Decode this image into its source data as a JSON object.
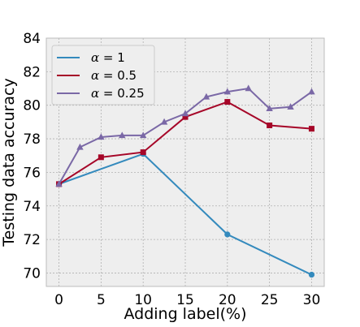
{
  "chart_data": {
    "type": "line",
    "xlabel": "Adding label(%)",
    "ylabel": "Testing data accuracy",
    "xlim": [
      -1.5,
      31.5
    ],
    "ylim": [
      69.2,
      84
    ],
    "xticks": [
      0,
      5,
      10,
      15,
      20,
      25,
      30
    ],
    "yticks": [
      70,
      72,
      74,
      76,
      78,
      80,
      82,
      84
    ],
    "grid": true,
    "legend_position": "top-left",
    "series": [
      {
        "name": "α = 1",
        "legend_symbol": "α",
        "legend_rest": " = 1",
        "color": "#348abd",
        "marker": "circle",
        "x": [
          0,
          10,
          20,
          30
        ],
        "y": [
          75.3,
          77.1,
          72.3,
          69.9
        ]
      },
      {
        "name": "α = 0.5",
        "legend_symbol": "α",
        "legend_rest": " = 0.5",
        "color": "#a60628",
        "marker": "square",
        "x": [
          0,
          5,
          10,
          15,
          20,
          25,
          30
        ],
        "y": [
          75.3,
          76.9,
          77.2,
          79.3,
          80.2,
          78.8,
          78.6
        ]
      },
      {
        "name": "α = 0.25",
        "legend_symbol": "α",
        "legend_rest": " = 0.25",
        "color": "#7a68a6",
        "marker": "triangle",
        "x": [
          0,
          2.5,
          5,
          7.5,
          10,
          12.5,
          15,
          17.5,
          20,
          22.5,
          25,
          27.5,
          30
        ],
        "y": [
          75.3,
          77.5,
          78.1,
          78.2,
          78.2,
          79.0,
          79.5,
          80.5,
          80.8,
          81.0,
          79.8,
          79.9,
          80.8
        ]
      }
    ]
  },
  "colors": {
    "plot_background": "#eeeeee",
    "grid": "#b0b0b0",
    "frame": "#bcbcbc"
  }
}
